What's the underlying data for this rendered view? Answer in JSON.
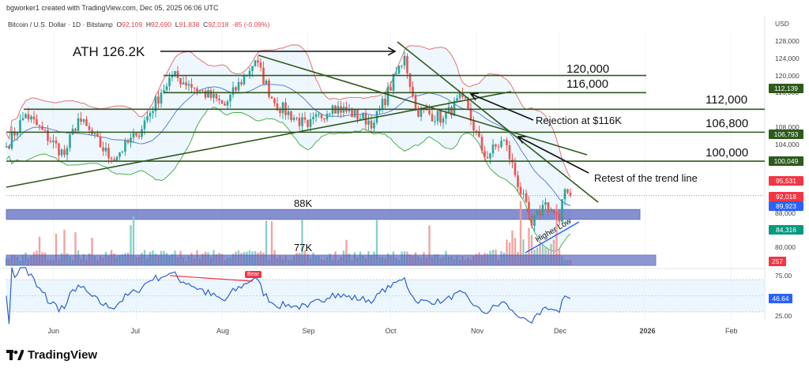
{
  "header": {
    "credit": "bgworker1 created with TradingView.com, Dec 05, 2025 06:06 UTC",
    "symbol": "Bitcoin / U.S. Dollar · 1D · Bitstamp",
    "o_label": "O",
    "o": "92,109",
    "h_label": "H",
    "h": "92,690",
    "l_label": "L",
    "l": "91,838",
    "c_label": "C",
    "c": "92,018",
    "change": "-85 (-0.09%)"
  },
  "footer": {
    "brand": "TradingView"
  },
  "colors": {
    "up": "#26a69a",
    "down": "#ef5350",
    "level": "#2e5a1c",
    "band_upper": "#e57373",
    "band_lower": "#4caf50",
    "basis": "#5b7fd6",
    "zone": "#5c6bc0",
    "rsi": "#2f5fd0"
  },
  "chart_data": {
    "type": "candlestick",
    "title": "Bitcoin / U.S. Dollar · 1D · Bitstamp",
    "currency": "USD",
    "y_ticks": [
      "128,000",
      "124,000",
      "120,000",
      "116,000",
      "108,000",
      "104,000",
      "88,000",
      "80,000"
    ],
    "y_tick_values": [
      128000,
      124000,
      120000,
      116000,
      108000,
      104000,
      88000,
      80000
    ],
    "ylim": [
      77000,
      130000
    ],
    "x_ticks": [
      "Jun",
      "Jul",
      "Aug",
      "Sep",
      "Oct",
      "Nov",
      "Dec",
      "2026",
      "Feb"
    ],
    "x_tick_dates": [
      "2025-06-01",
      "2025-07-01",
      "2025-08-01",
      "2025-09-01",
      "2025-10-01",
      "2025-11-01",
      "2025-12-01",
      "2026-01-01",
      "2026-02-01"
    ],
    "x_range": [
      "2025-05-15",
      "2026-02-25"
    ],
    "close_keypoints": [
      [
        "2025-05-15",
        103500
      ],
      [
        "2025-05-22",
        111000
      ],
      [
        "2025-06-05",
        101500
      ],
      [
        "2025-06-10",
        110000
      ],
      [
        "2025-06-22",
        100500
      ],
      [
        "2025-07-01",
        106000
      ],
      [
        "2025-07-10",
        116000
      ],
      [
        "2025-07-14",
        120000
      ],
      [
        "2025-07-20",
        118000
      ],
      [
        "2025-08-02",
        113000
      ],
      [
        "2025-08-13",
        123500
      ],
      [
        "2025-08-20",
        113500
      ],
      [
        "2025-09-01",
        108000
      ],
      [
        "2025-09-10",
        113000
      ],
      [
        "2025-09-25",
        109000
      ],
      [
        "2025-10-06",
        124500
      ],
      [
        "2025-10-10",
        112000
      ],
      [
        "2025-10-20",
        110000
      ],
      [
        "2025-10-27",
        115000
      ],
      [
        "2025-11-04",
        101000
      ],
      [
        "2025-11-11",
        105000
      ],
      [
        "2025-11-21",
        85000
      ],
      [
        "2025-11-26",
        90500
      ],
      [
        "2025-12-01",
        86000
      ],
      [
        "2025-12-03",
        93500
      ],
      [
        "2025-12-05",
        92018
      ]
    ],
    "levels": [
      {
        "value": 120000,
        "label": "120,000"
      },
      {
        "value": 116000,
        "label": "116,000"
      },
      {
        "value": 112139,
        "label": "112,000",
        "tag": "112,139"
      },
      {
        "value": 106793,
        "label": "106,800",
        "tag": "106,793"
      },
      {
        "value": 100049,
        "label": "100,000",
        "tag": "100,049"
      }
    ],
    "zones": [
      {
        "label": "88K",
        "from": 86500,
        "to": 88800
      },
      {
        "label": "77K"
      }
    ],
    "price_tags": [
      {
        "text": "95,531",
        "color": "#f23645"
      },
      {
        "text": "92,018",
        "color": "#f23645"
      },
      {
        "text": "89,923",
        "color": "#2962ff"
      },
      {
        "text": "84,316",
        "color": "#089981"
      },
      {
        "text": "257",
        "color": "#f23645"
      }
    ],
    "annotations": {
      "ath": "ATH 126.2K",
      "rejection": "Rejection at $116K",
      "retest": "Retest of the trend line",
      "higher_low": "Higher Low",
      "bear": "Bear"
    },
    "rsi": {
      "value": "46.64",
      "ticks": [
        "75.00",
        "25.00"
      ],
      "upper": 70,
      "lower": 30
    },
    "volume_last": "257"
  }
}
